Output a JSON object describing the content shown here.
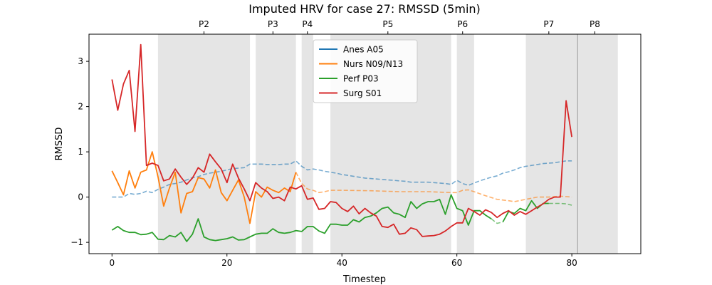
{
  "chart_data": {
    "type": "line",
    "title": "Imputed HRV for case 27: RMSSD (5min)",
    "xlabel": "Timestep",
    "ylabel": "RMSSD",
    "xlim": [
      -4,
      92
    ],
    "ylim": [
      -1.25,
      3.6
    ],
    "xticks": [
      0,
      20,
      40,
      60,
      80
    ],
    "yticks": [
      -1,
      0,
      1,
      2,
      3
    ],
    "grid": false,
    "legend_position": "upper center",
    "phases": [
      {
        "label": "",
        "start": 8,
        "end": 24
      },
      {
        "label": "P2",
        "start": 8,
        "end": 24
      },
      {
        "label": "P3",
        "start": 25,
        "end": 32
      },
      {
        "label": "P4",
        "start": 33,
        "end": 35
      },
      {
        "label": "P5",
        "start": 38,
        "end": 59
      },
      {
        "label": "P6",
        "start": 60,
        "end": 63
      },
      {
        "label": "P7",
        "start": 72,
        "end": 81
      },
      {
        "label": "P8",
        "start": 81,
        "end": 88
      }
    ],
    "phase_label_x": [
      16,
      28,
      34,
      48,
      61,
      76,
      84
    ],
    "series": [
      {
        "name": "Anes A05",
        "color": "#1f77b4",
        "segments": [
          {
            "style": "dashed",
            "x": [
              0,
              2,
              3,
              4,
              5,
              6,
              7,
              8,
              9,
              10,
              11,
              12,
              13,
              14,
              15,
              16,
              17,
              18,
              19,
              20,
              21,
              22,
              23,
              24,
              25,
              26,
              27,
              28,
              29,
              30,
              31,
              32,
              33,
              34,
              35,
              36,
              37,
              38,
              39,
              40,
              41,
              42,
              43,
              44,
              45,
              46,
              47,
              48,
              49,
              50,
              51,
              52,
              53,
              54,
              55,
              56,
              57,
              58,
              59,
              60,
              61,
              62,
              63,
              64,
              65,
              66,
              67,
              68,
              69,
              70,
              71,
              72,
              73,
              74,
              75,
              76,
              77,
              78,
              79,
              80
            ],
            "y": [
              0.0,
              0.0,
              0.08,
              0.06,
              0.08,
              0.13,
              0.1,
              0.17,
              0.22,
              0.28,
              0.3,
              0.33,
              0.38,
              0.43,
              0.45,
              0.5,
              0.53,
              0.55,
              0.57,
              0.6,
              0.63,
              0.64,
              0.65,
              0.73,
              0.73,
              0.73,
              0.72,
              0.72,
              0.72,
              0.73,
              0.73,
              0.8,
              0.68,
              0.6,
              0.62,
              0.6,
              0.57,
              0.55,
              0.53,
              0.5,
              0.48,
              0.46,
              0.44,
              0.42,
              0.41,
              0.4,
              0.39,
              0.38,
              0.37,
              0.36,
              0.35,
              0.33,
              0.33,
              0.33,
              0.33,
              0.32,
              0.31,
              0.3,
              0.28,
              0.37,
              0.3,
              0.26,
              0.31,
              0.36,
              0.4,
              0.44,
              0.47,
              0.53,
              0.56,
              0.6,
              0.65,
              0.68,
              0.7,
              0.72,
              0.74,
              0.75,
              0.76,
              0.78,
              0.8,
              0.8
            ]
          }
        ]
      },
      {
        "name": "Nurs N09/N13",
        "color": "#ff7f0e",
        "segments": [
          {
            "style": "solid",
            "x": [
              0,
              1,
              2,
              3,
              4,
              5,
              6,
              7,
              8,
              9,
              10,
              11,
              12,
              13,
              14,
              15,
              16,
              17,
              18,
              19,
              20,
              21,
              22,
              23,
              24,
              25,
              26,
              27,
              28,
              29,
              30,
              31,
              32
            ],
            "y": [
              0.58,
              0.32,
              0.05,
              0.58,
              0.2,
              0.55,
              0.6,
              1.0,
              0.45,
              -0.2,
              0.2,
              0.55,
              -0.35,
              0.08,
              0.12,
              0.43,
              0.4,
              0.2,
              0.6,
              0.1,
              -0.08,
              0.15,
              0.38,
              0.0,
              -0.58,
              0.12,
              0.0,
              0.22,
              0.15,
              0.1,
              0.2,
              0.12,
              0.55
            ]
          },
          {
            "style": "dashed",
            "x": [
              32,
              33,
              34,
              35,
              36,
              37,
              38,
              40,
              45,
              50,
              55,
              59,
              60,
              61,
              62,
              63,
              65,
              67,
              69,
              70,
              72,
              74,
              76,
              78,
              80
            ],
            "y": [
              0.55,
              0.3,
              0.18,
              0.15,
              0.1,
              0.12,
              0.15,
              0.15,
              0.14,
              0.12,
              0.12,
              0.1,
              0.1,
              0.15,
              0.16,
              0.12,
              0.03,
              -0.05,
              -0.08,
              -0.1,
              -0.05,
              0.0,
              0.0,
              0.02,
              0.0
            ]
          }
        ]
      },
      {
        "name": "Perf P03",
        "color": "#2ca02c",
        "segments": [
          {
            "style": "solid",
            "x": [
              0,
              1,
              2,
              3,
              4,
              5,
              6,
              7,
              8,
              9,
              10,
              11,
              12,
              13,
              14,
              15,
              16,
              17,
              18,
              19,
              20,
              21,
              22,
              23,
              24,
              25,
              26,
              27,
              28,
              29,
              30,
              31,
              32,
              33,
              34,
              35,
              36,
              37,
              38,
              39,
              40,
              41,
              42,
              43,
              44,
              45,
              46,
              47,
              48,
              49,
              50,
              51,
              52,
              53,
              54,
              55,
              56,
              57,
              58,
              59,
              60,
              61,
              62,
              63,
              64,
              65,
              66
            ],
            "y": [
              -0.73,
              -0.65,
              -0.74,
              -0.78,
              -0.78,
              -0.83,
              -0.82,
              -0.78,
              -0.93,
              -0.94,
              -0.85,
              -0.88,
              -0.78,
              -0.98,
              -0.82,
              -0.48,
              -0.88,
              -0.94,
              -0.96,
              -0.94,
              -0.92,
              -0.88,
              -0.95,
              -0.94,
              -0.88,
              -0.82,
              -0.8,
              -0.8,
              -0.7,
              -0.78,
              -0.8,
              -0.78,
              -0.74,
              -0.76,
              -0.65,
              -0.65,
              -0.75,
              -0.8,
              -0.6,
              -0.6,
              -0.62,
              -0.62,
              -0.5,
              -0.55,
              -0.45,
              -0.42,
              -0.35,
              -0.25,
              -0.22,
              -0.35,
              -0.38,
              -0.45,
              -0.1,
              -0.25,
              -0.15,
              -0.1,
              -0.1,
              -0.05,
              -0.38,
              0.05,
              -0.25,
              -0.3,
              -0.62,
              -0.3,
              -0.3,
              -0.4,
              -0.48
            ]
          },
          {
            "style": "dashed",
            "x": [
              66,
              67,
              68
            ],
            "y": [
              -0.48,
              -0.58,
              -0.55
            ]
          },
          {
            "style": "solid",
            "x": [
              68,
              69,
              70,
              71,
              72,
              73,
              74,
              75,
              76
            ],
            "y": [
              -0.55,
              -0.32,
              -0.36,
              -0.25,
              -0.3,
              -0.08,
              -0.25,
              -0.14,
              -0.14
            ]
          },
          {
            "style": "dashed",
            "x": [
              76,
              77,
              78,
              79,
              80
            ],
            "y": [
              -0.14,
              -0.14,
              -0.14,
              -0.15,
              -0.18
            ]
          }
        ]
      },
      {
        "name": "Surg S01",
        "color": "#d62728",
        "segments": [
          {
            "style": "solid",
            "x": [
              0,
              1,
              2,
              3,
              4,
              5,
              6,
              7,
              8,
              9,
              10,
              11,
              12,
              13,
              14,
              15,
              16,
              17,
              18,
              19,
              20,
              21,
              22,
              23,
              24,
              25,
              26,
              27,
              28,
              29,
              30,
              31,
              32,
              33,
              34,
              35,
              36,
              37,
              38,
              39,
              40,
              41,
              42,
              43,
              44,
              45,
              46,
              47,
              48,
              49,
              50,
              51,
              52,
              53,
              54,
              55,
              56,
              57,
              58,
              59,
              60,
              61,
              62,
              63,
              64,
              65,
              66,
              67,
              68,
              69,
              70,
              71,
              72,
              73,
              74,
              75,
              76,
              77,
              78,
              79,
              80
            ],
            "y": [
              2.6,
              1.92,
              2.5,
              2.8,
              1.45,
              3.37,
              0.7,
              0.75,
              0.7,
              0.36,
              0.4,
              0.62,
              0.44,
              0.28,
              0.42,
              0.65,
              0.55,
              0.95,
              0.78,
              0.62,
              0.32,
              0.73,
              0.42,
              0.18,
              -0.08,
              0.32,
              0.2,
              0.12,
              -0.03,
              0.0,
              -0.08,
              0.22,
              0.18,
              0.25,
              -0.05,
              -0.02,
              -0.27,
              -0.25,
              -0.1,
              -0.12,
              -0.25,
              -0.32,
              -0.2,
              -0.37,
              -0.25,
              -0.35,
              -0.42,
              -0.65,
              -0.67,
              -0.6,
              -0.82,
              -0.8,
              -0.68,
              -0.72,
              -0.87,
              -0.86,
              -0.85,
              -0.82,
              -0.75,
              -0.65,
              -0.57,
              -0.57,
              -0.25,
              -0.32,
              -0.4,
              -0.28,
              -0.34,
              -0.45,
              -0.36,
              -0.3,
              -0.4,
              -0.32,
              -0.38,
              -0.3,
              -0.22,
              -0.15,
              -0.05,
              0.0,
              0.0,
              2.13,
              1.33
            ]
          }
        ]
      }
    ]
  }
}
